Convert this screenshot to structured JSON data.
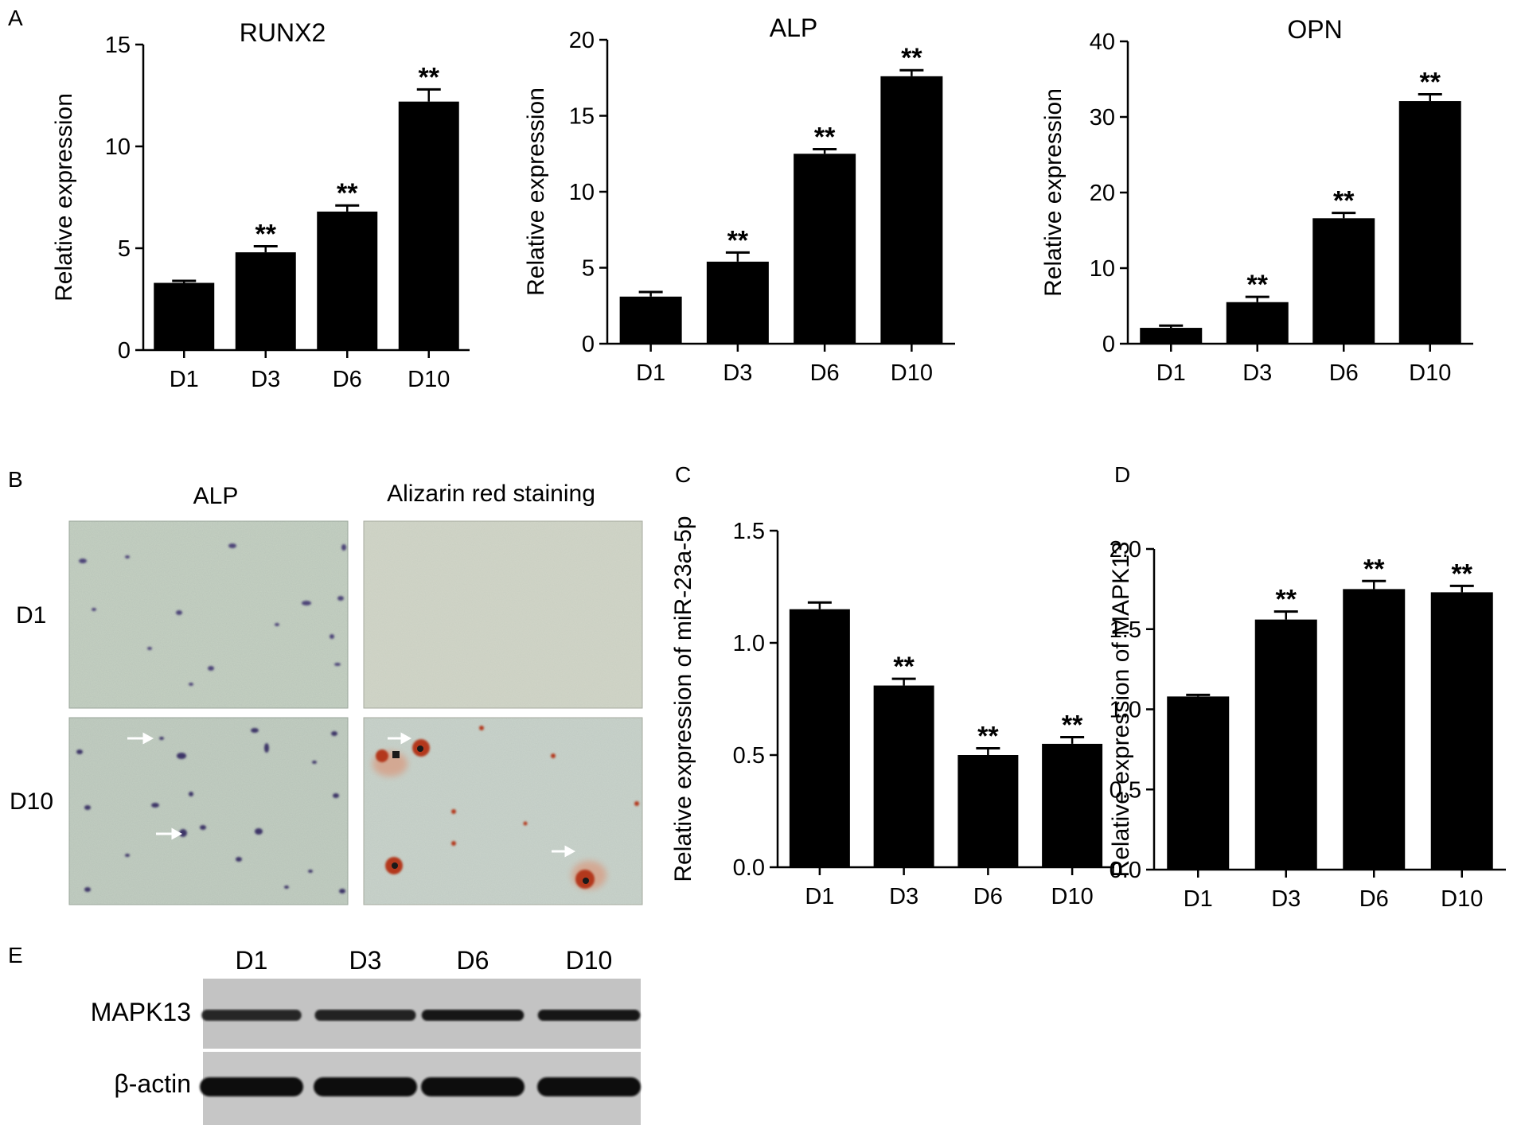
{
  "panel_labels": {
    "A": "A",
    "B": "B",
    "C": "C",
    "D": "D",
    "E": "E"
  },
  "chart_data": [
    {
      "type": "bar",
      "title": "RUNX2",
      "ylabel": "Relative expression",
      "xlabel": "",
      "categories": [
        "D1",
        "D3",
        "D6",
        "D10"
      ],
      "values": [
        3.3,
        4.8,
        6.8,
        12.2
      ],
      "errors": [
        0.1,
        0.3,
        0.3,
        0.6
      ],
      "significance": [
        "",
        "**",
        "**",
        "**"
      ],
      "ylim": [
        0,
        15
      ],
      "yticks": [
        "0",
        "5",
        "10",
        "15"
      ],
      "grid": false,
      "color": "#000000"
    },
    {
      "type": "bar",
      "title": "ALP",
      "ylabel": "Relative expression",
      "xlabel": "",
      "categories": [
        "D1",
        "D3",
        "D6",
        "D10"
      ],
      "values": [
        3.1,
        5.4,
        12.5,
        17.6
      ],
      "errors": [
        0.3,
        0.6,
        0.3,
        0.4
      ],
      "significance": [
        "",
        "**",
        "**",
        "**"
      ],
      "ylim": [
        0,
        20
      ],
      "yticks": [
        "0",
        "5",
        "10",
        "15",
        "20"
      ],
      "grid": false,
      "color": "#000000"
    },
    {
      "type": "bar",
      "title": "OPN",
      "ylabel": "Relative expression",
      "xlabel": "",
      "categories": [
        "D1",
        "D3",
        "D6",
        "D10"
      ],
      "values": [
        2.1,
        5.5,
        16.6,
        32.1
      ],
      "errors": [
        0.3,
        0.7,
        0.7,
        0.9
      ],
      "significance": [
        "",
        "**",
        "**",
        "**"
      ],
      "ylim": [
        0,
        40
      ],
      "yticks": [
        "0",
        "10",
        "20",
        "30",
        "40"
      ],
      "grid": false,
      "color": "#000000"
    },
    {
      "type": "bar",
      "title": "",
      "ylabel": "Relative expression of miR-23a-5p",
      "xlabel": "",
      "categories": [
        "D1",
        "D3",
        "D6",
        "D10"
      ],
      "values": [
        1.15,
        0.81,
        0.5,
        0.55
      ],
      "errors": [
        0.03,
        0.03,
        0.03,
        0.03
      ],
      "significance": [
        "",
        "**",
        "**",
        "**"
      ],
      "ylim": [
        0,
        1.5
      ],
      "yticks": [
        "0.0",
        "0.5",
        "1.0",
        "1.5"
      ],
      "grid": false,
      "color": "#000000"
    },
    {
      "type": "bar",
      "title": "",
      "ylabel": "Relative expression of MAPK13",
      "xlabel": "",
      "categories": [
        "D1",
        "D3",
        "D6",
        "D10"
      ],
      "values": [
        1.08,
        1.56,
        1.75,
        1.73
      ],
      "errors": [
        0.01,
        0.05,
        0.05,
        0.04
      ],
      "significance": [
        "",
        "**",
        "**",
        "**"
      ],
      "ylim": [
        0,
        2.0
      ],
      "yticks": [
        "0.0",
        "0.5",
        "1.0",
        "1.5",
        "2.0"
      ],
      "grid": false,
      "color": "#000000"
    }
  ],
  "staining": {
    "columns": [
      "ALP",
      "Alizarin red staining"
    ],
    "rows": [
      "D1",
      "D10"
    ]
  },
  "western_blot": {
    "lanes": [
      "D1",
      "D3",
      "D6",
      "D10"
    ],
    "proteins": [
      "MAPK13",
      "β-actin"
    ],
    "band_intensity": {
      "MAPK13": [
        0.55,
        0.7,
        0.85,
        0.85
      ],
      "β-actin": [
        1,
        1,
        1,
        1
      ]
    }
  },
  "colors": {
    "bar": "#000000",
    "micrograph_bg": "#c9d3c4",
    "alizarin_nodule": "#b5381c",
    "alp_cell": "#4a4070"
  }
}
